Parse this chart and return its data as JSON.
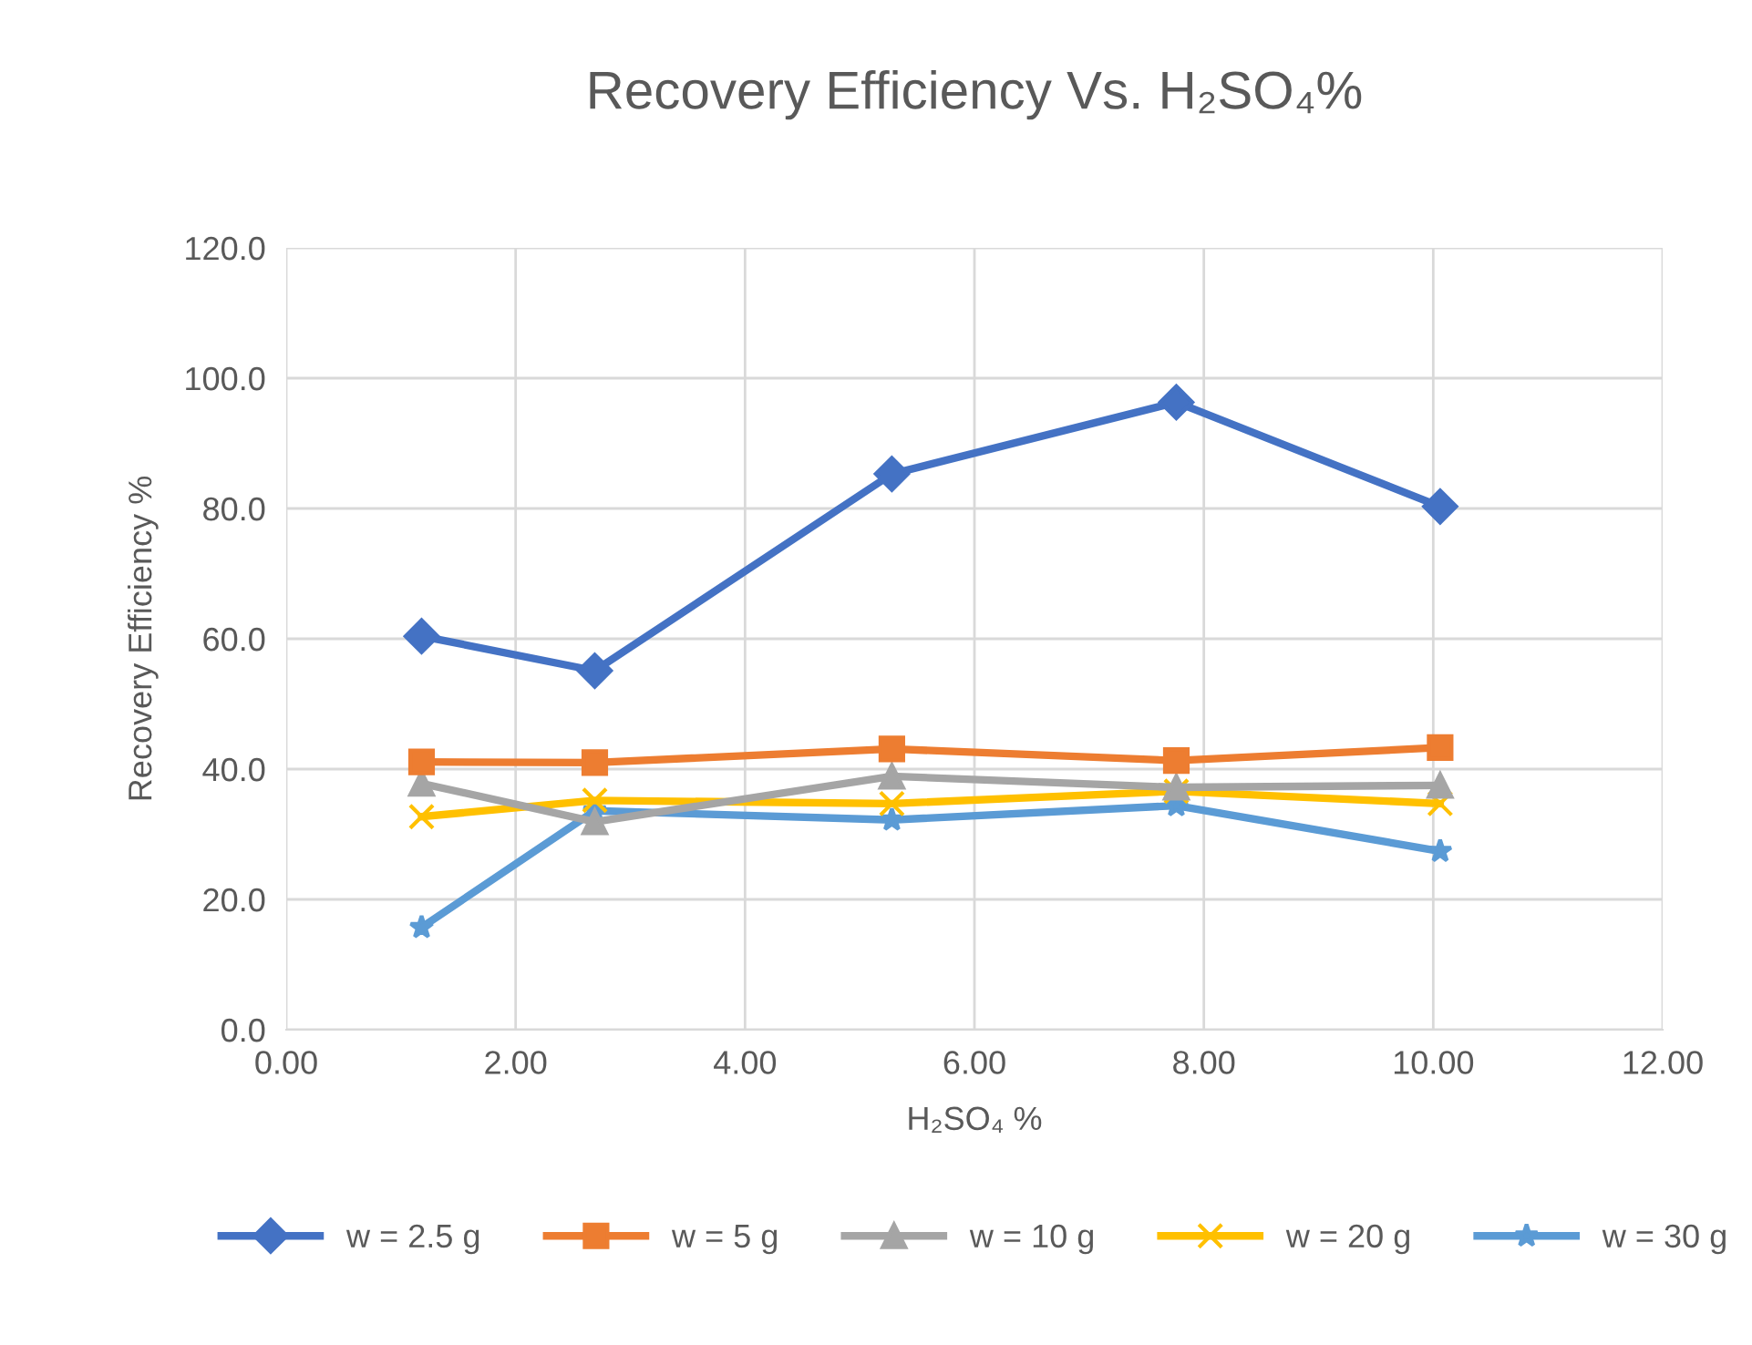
{
  "chart_data": {
    "type": "line",
    "title": "Recovery Efficiency Vs. H₂SO₄%",
    "xlabel": "H₂SO₄ %",
    "ylabel": "Recovery Efficiency %",
    "x": [
      1.18,
      2.69,
      5.28,
      7.76,
      10.06
    ],
    "series": [
      {
        "name": "w = 2.5 g",
        "color": "#4472c4",
        "marker": "diamond",
        "values": [
          60.4,
          55.1,
          85.3,
          96.3,
          80.3
        ]
      },
      {
        "name": "w = 5 g",
        "color": "#ed7d31",
        "marker": "square",
        "values": [
          41.1,
          41.0,
          43.1,
          41.3,
          43.3
        ]
      },
      {
        "name": "w = 10 g",
        "color": "#a5a5a5",
        "marker": "triangle",
        "values": [
          37.8,
          31.9,
          38.9,
          37.2,
          37.5
        ]
      },
      {
        "name": "w = 20 g",
        "color": "#ffc000",
        "marker": "cross",
        "values": [
          32.7,
          35.2,
          34.7,
          36.6,
          34.7
        ]
      },
      {
        "name": "w = 30 g",
        "color": "#5b9bd5",
        "marker": "star",
        "values": [
          15.7,
          33.6,
          32.2,
          34.4,
          27.4
        ]
      }
    ],
    "xlim": [
      0,
      12
    ],
    "ylim": [
      0,
      120
    ],
    "xticks": [
      {
        "value": 0,
        "label": "0.00"
      },
      {
        "value": 2,
        "label": "2.00"
      },
      {
        "value": 4,
        "label": "4.00"
      },
      {
        "value": 6,
        "label": "6.00"
      },
      {
        "value": 8,
        "label": "8.00"
      },
      {
        "value": 10,
        "label": "10.00"
      },
      {
        "value": 12,
        "label": "12.00"
      }
    ],
    "yticks": [
      {
        "value": 0,
        "label": "0.0"
      },
      {
        "value": 20,
        "label": "20.0"
      },
      {
        "value": 40,
        "label": "40.0"
      },
      {
        "value": 60,
        "label": "60.0"
      },
      {
        "value": 80,
        "label": "80.0"
      },
      {
        "value": 100,
        "label": "100.0"
      },
      {
        "value": 120,
        "label": "120.0"
      }
    ],
    "grid": true,
    "legend": "bottom",
    "line_style": "solid"
  }
}
